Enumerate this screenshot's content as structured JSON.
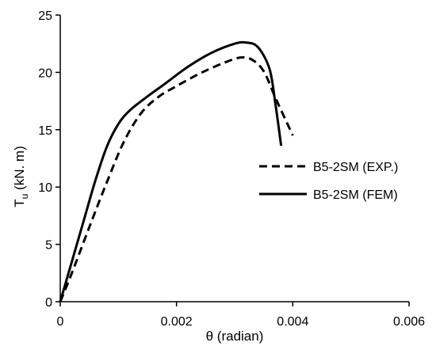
{
  "chart_data": {
    "type": "line",
    "title": "",
    "xlabel": "θ (radian)",
    "ylabel": {
      "main": "T",
      "sub": "u",
      "rest": " (kN. m)"
    },
    "xlim": [
      0,
      0.006
    ],
    "ylim": [
      0,
      25
    ],
    "xticks": [
      0,
      0.002,
      0.004,
      0.006
    ],
    "xtick_labels": [
      "0",
      "0.002",
      "0.004",
      "0.006"
    ],
    "yticks": [
      0,
      5,
      10,
      15,
      20,
      25
    ],
    "ytick_labels": [
      "0",
      "5",
      "10",
      "15",
      "20",
      "25"
    ],
    "grid": false,
    "legend_position": "right",
    "series": [
      {
        "name": "B5-2SM (EXP.)",
        "style": "dashed",
        "color": "#000000",
        "x": [
          0,
          0.0002,
          0.0005,
          0.0008,
          0.0011,
          0.0014,
          0.0017,
          0.002,
          0.0024,
          0.0028,
          0.0031,
          0.0033,
          0.0035,
          0.0037,
          0.0039,
          0.004
        ],
        "y": [
          0,
          2.5,
          6.5,
          10.4,
          14.0,
          16.5,
          17.9,
          18.8,
          19.9,
          20.8,
          21.3,
          21.1,
          20.1,
          17.8,
          15.6,
          14.5
        ]
      },
      {
        "name": "B5-2SM (FEM)",
        "style": "solid",
        "color": "#000000",
        "x": [
          0,
          0.0002,
          0.0004,
          0.0006,
          0.0008,
          0.001,
          0.0012,
          0.0015,
          0.0018,
          0.0022,
          0.0026,
          0.003,
          0.0032,
          0.0034,
          0.0036,
          0.0037,
          0.0038
        ],
        "y": [
          0,
          3.5,
          7.0,
          10.5,
          13.5,
          15.5,
          16.7,
          17.9,
          19.0,
          20.5,
          21.7,
          22.5,
          22.6,
          22.2,
          20.3,
          17.3,
          13.6
        ]
      }
    ]
  }
}
